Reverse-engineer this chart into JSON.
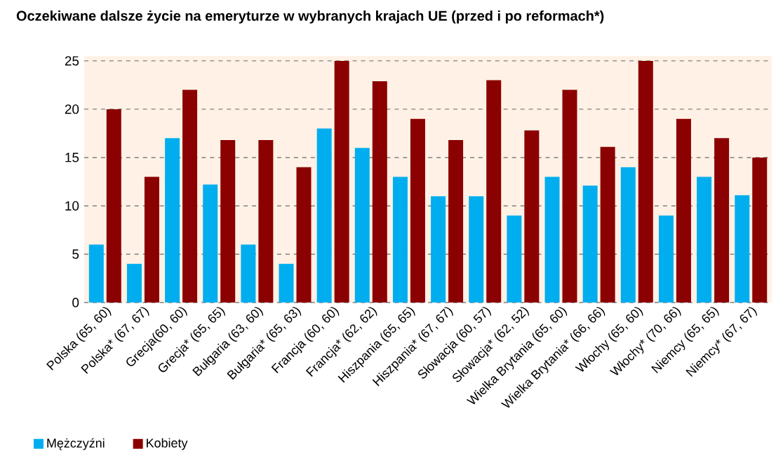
{
  "chart_data": {
    "type": "bar",
    "title": "Oczekiwane dalsze życie na emeryturze w wybranych krajach UE (przed i po reformach*)",
    "categories": [
      "Polska (65, 60)",
      "Polska* (67, 67)",
      "Grecja(60, 60)",
      "Grecja* (65, 65)",
      "Bułgaria (63, 60)",
      "Bułgaria* (65, 63)",
      "Francja (60, 60)",
      "Francja* (62, 62)",
      "Hiszpania (65, 65)",
      "Hiszpania* (67, 67)",
      "Słowacja (60, 57)",
      "Słowacja* (62, 52)",
      "Wielka Brytania (65, 60)",
      "Wielka Brytania* (66, 66)",
      "Włochy (65, 60)",
      "Włochy* (70, 66)",
      "Niemcy (65, 65)",
      "Niemcy* (67, 67)"
    ],
    "series": [
      {
        "name": "Mężczyźni",
        "color": "#00aeef",
        "values": [
          6,
          4,
          17,
          12.2,
          6,
          4,
          18,
          16,
          13,
          11,
          11,
          9,
          13,
          12.1,
          14,
          9,
          13,
          11.1
        ]
      },
      {
        "name": "Kobiety",
        "color": "#8b0000",
        "values": [
          20,
          13,
          22,
          16.8,
          16.8,
          14,
          25,
          22.9,
          19,
          16.8,
          23,
          17.8,
          22,
          16.1,
          25,
          19,
          17,
          15
        ]
      }
    ],
    "ylim": [
      0,
      25.5
    ],
    "yticks": [
      0,
      5,
      10,
      15,
      20,
      25
    ],
    "grid": "y",
    "legend": "bottom left"
  }
}
